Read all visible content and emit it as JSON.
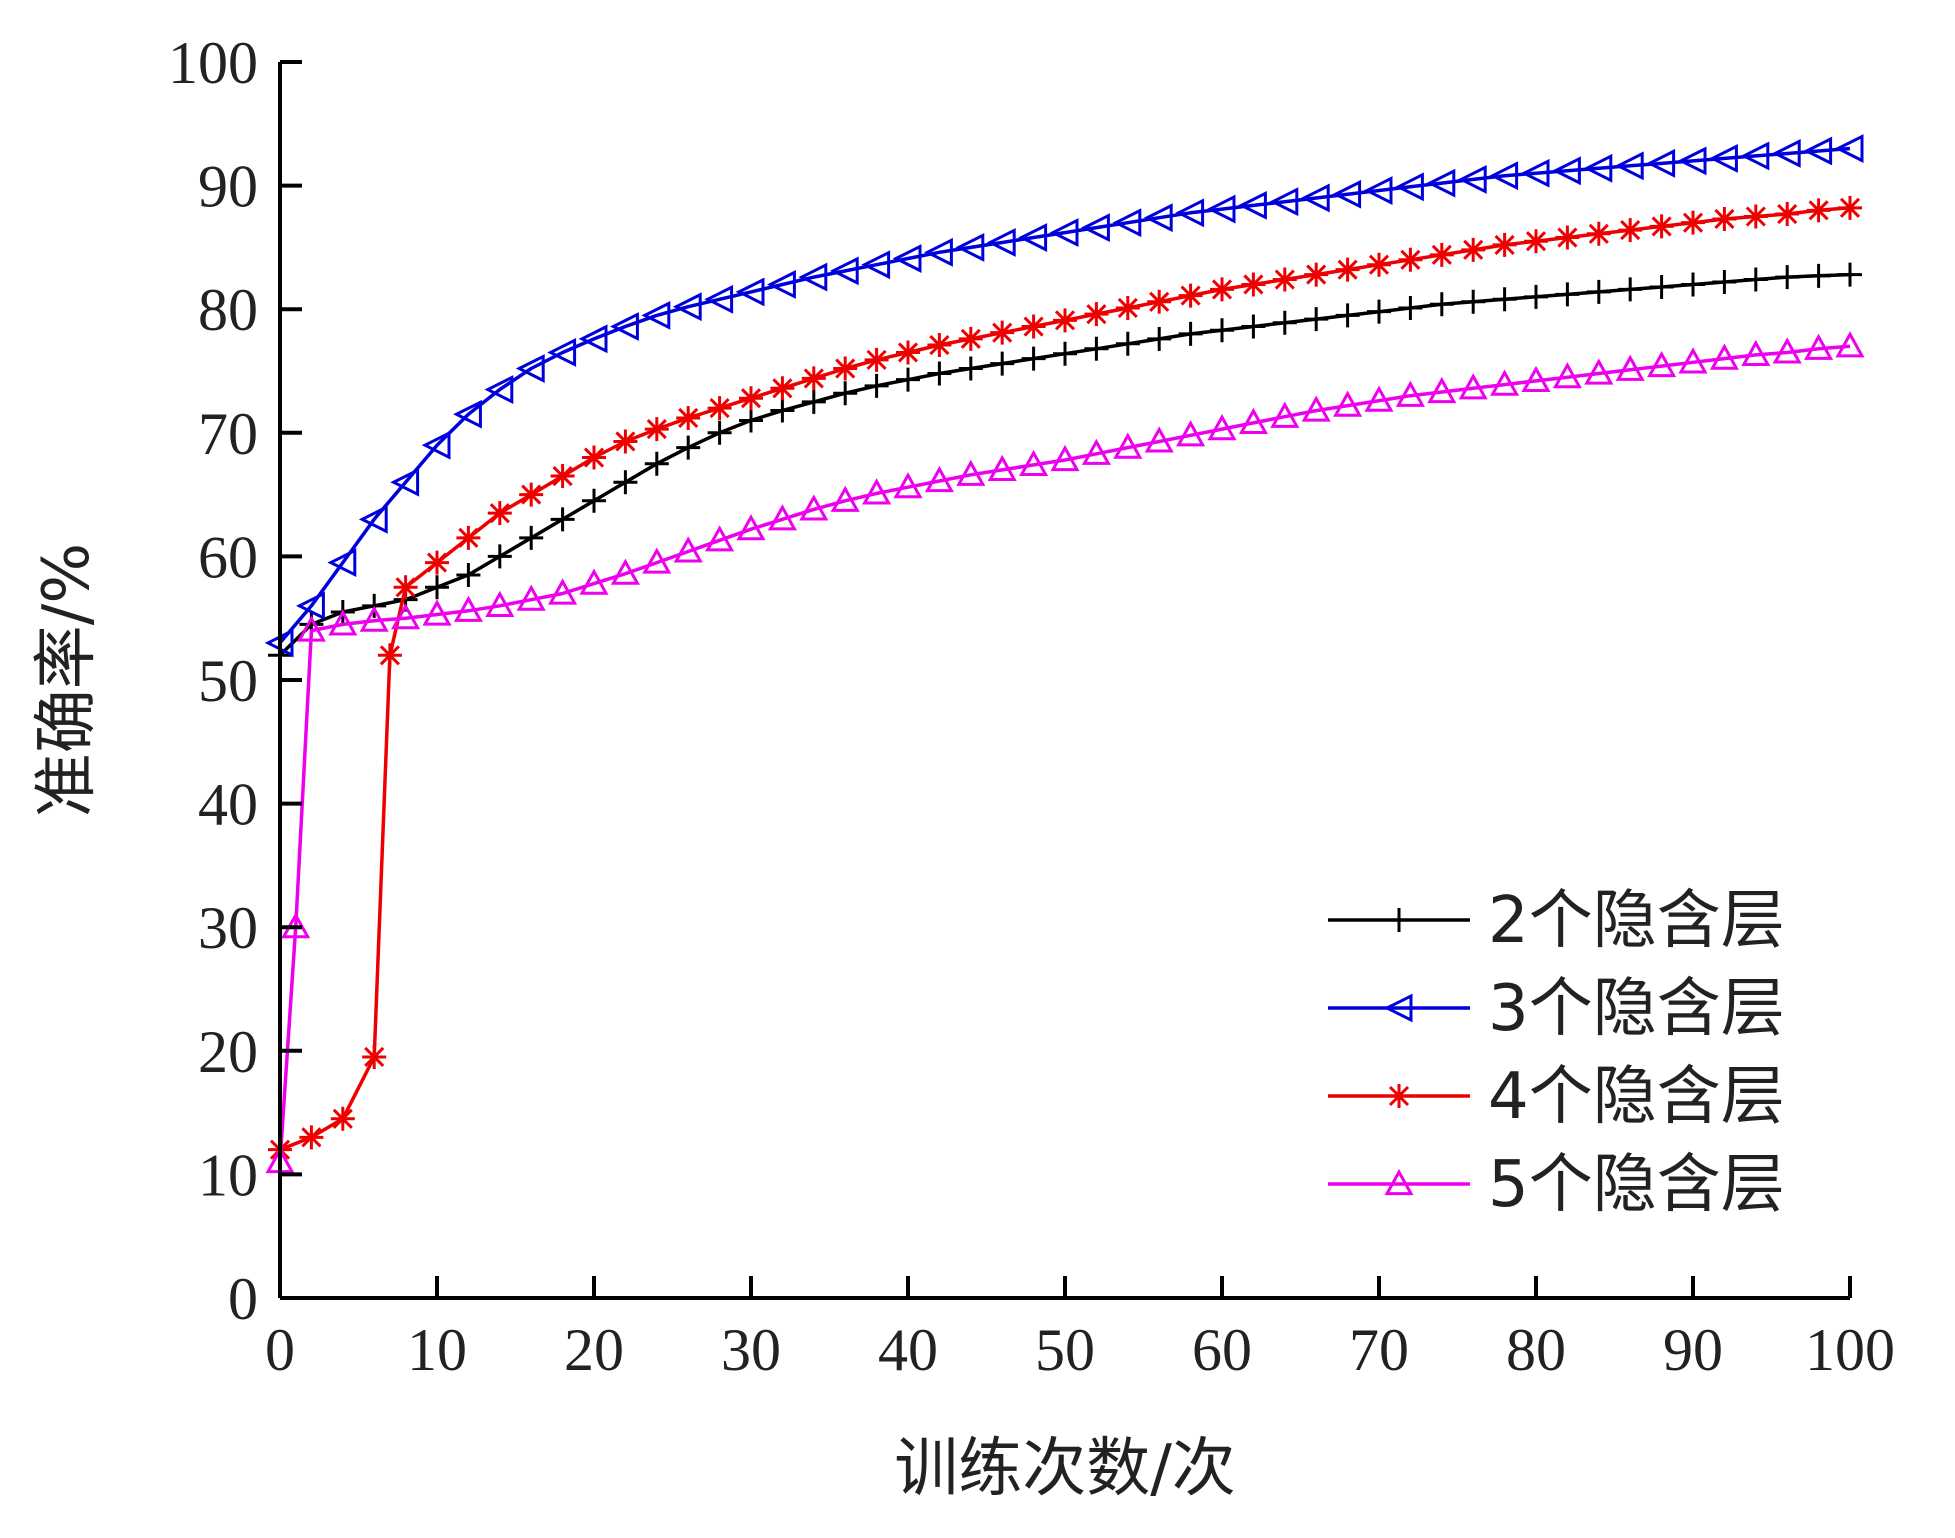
{
  "chart_data": {
    "type": "line",
    "xlabel": "训练次数/次",
    "ylabel": "准确率/%",
    "xlim": [
      0,
      100
    ],
    "ylim": [
      0,
      100
    ],
    "xticks": [
      0,
      10,
      20,
      30,
      40,
      50,
      60,
      70,
      80,
      90,
      100
    ],
    "yticks": [
      0,
      10,
      20,
      30,
      40,
      50,
      60,
      70,
      80,
      90,
      100
    ],
    "xtick_labels": [
      "0",
      "10",
      "20",
      "30",
      "40",
      "50",
      "60",
      "70",
      "80",
      "90",
      "100"
    ],
    "ytick_labels": [
      "0",
      "10",
      "20",
      "30",
      "40",
      "50",
      "60",
      "70",
      "80",
      "90",
      "100"
    ],
    "grid": false,
    "legend_position": "lower-right",
    "series": [
      {
        "name": "2个隐含层",
        "color": "#000000",
        "marker": "plus",
        "x": [
          0,
          2,
          4,
          6,
          8,
          10,
          12,
          14,
          16,
          18,
          20,
          22,
          24,
          26,
          28,
          30,
          32,
          34,
          36,
          38,
          40,
          42,
          44,
          46,
          48,
          50,
          52,
          54,
          56,
          58,
          60,
          62,
          64,
          66,
          68,
          70,
          72,
          74,
          76,
          78,
          80,
          82,
          84,
          86,
          88,
          90,
          92,
          94,
          96,
          98,
          100
        ],
        "y": [
          52,
          54.5,
          55.5,
          56,
          56.5,
          57.5,
          58.5,
          60,
          61.5,
          63,
          64.5,
          66,
          67.5,
          68.8,
          70,
          71,
          71.8,
          72.5,
          73.2,
          73.8,
          74.3,
          74.8,
          75.2,
          75.6,
          76,
          76.4,
          76.8,
          77.2,
          77.6,
          78,
          78.3,
          78.6,
          78.9,
          79.2,
          79.5,
          79.8,
          80.1,
          80.4,
          80.6,
          80.8,
          81,
          81.2,
          81.4,
          81.6,
          81.8,
          82,
          82.2,
          82.4,
          82.6,
          82.7,
          82.8
        ]
      },
      {
        "name": "3个隐含层",
        "color": "#0000dd",
        "marker": "triangle-left",
        "x": [
          0,
          2,
          4,
          6,
          8,
          10,
          12,
          14,
          16,
          18,
          20,
          22,
          24,
          26,
          28,
          30,
          32,
          34,
          36,
          38,
          40,
          42,
          44,
          46,
          48,
          50,
          52,
          54,
          56,
          58,
          60,
          62,
          64,
          66,
          68,
          70,
          72,
          74,
          76,
          78,
          80,
          82,
          84,
          86,
          88,
          90,
          92,
          94,
          96,
          98,
          100
        ],
        "y": [
          53,
          56,
          59.5,
          63,
          66,
          69,
          71.5,
          73.5,
          75.2,
          76.5,
          77.6,
          78.6,
          79.5,
          80.2,
          80.8,
          81.4,
          82,
          82.6,
          83.1,
          83.6,
          84.1,
          84.6,
          85,
          85.4,
          85.8,
          86.2,
          86.6,
          87,
          87.4,
          87.8,
          88.1,
          88.4,
          88.7,
          89,
          89.3,
          89.6,
          89.9,
          90.2,
          90.5,
          90.8,
          91,
          91.2,
          91.4,
          91.6,
          91.8,
          92,
          92.2,
          92.4,
          92.6,
          92.8,
          93
        ]
      },
      {
        "name": "4个隐含层",
        "color": "#ee0000",
        "marker": "asterisk",
        "x": [
          0,
          2,
          4,
          6,
          7,
          8,
          10,
          12,
          14,
          16,
          18,
          20,
          22,
          24,
          26,
          28,
          30,
          32,
          34,
          36,
          38,
          40,
          42,
          44,
          46,
          48,
          50,
          52,
          54,
          56,
          58,
          60,
          62,
          64,
          66,
          68,
          70,
          72,
          74,
          76,
          78,
          80,
          82,
          84,
          86,
          88,
          90,
          92,
          94,
          96,
          98,
          100
        ],
        "y": [
          12,
          13,
          14.5,
          19.5,
          52,
          57.5,
          59.5,
          61.5,
          63.5,
          65,
          66.5,
          68,
          69.3,
          70.3,
          71.2,
          72,
          72.8,
          73.6,
          74.4,
          75.2,
          75.9,
          76.5,
          77.1,
          77.6,
          78.1,
          78.6,
          79.1,
          79.6,
          80.1,
          80.6,
          81.1,
          81.6,
          82,
          82.4,
          82.8,
          83.2,
          83.6,
          84,
          84.4,
          84.8,
          85.2,
          85.5,
          85.8,
          86.1,
          86.4,
          86.7,
          87,
          87.3,
          87.5,
          87.7,
          88,
          88.2
        ]
      },
      {
        "name": "5个隐含层",
        "color": "#ee00ee",
        "marker": "triangle-up",
        "x": [
          0,
          1,
          2,
          4,
          6,
          8,
          10,
          12,
          14,
          16,
          18,
          20,
          22,
          24,
          26,
          28,
          30,
          32,
          34,
          36,
          38,
          40,
          42,
          44,
          46,
          48,
          50,
          52,
          54,
          56,
          58,
          60,
          62,
          64,
          66,
          68,
          70,
          72,
          74,
          76,
          78,
          80,
          82,
          84,
          86,
          88,
          90,
          92,
          94,
          96,
          98,
          100
        ],
        "y": [
          11,
          30,
          54,
          54.5,
          54.8,
          55,
          55.3,
          55.6,
          56,
          56.5,
          57,
          57.8,
          58.6,
          59.5,
          60.4,
          61.3,
          62.2,
          63,
          63.8,
          64.5,
          65.1,
          65.6,
          66.1,
          66.6,
          67,
          67.4,
          67.8,
          68.3,
          68.8,
          69.3,
          69.8,
          70.3,
          70.8,
          71.3,
          71.8,
          72.2,
          72.6,
          73,
          73.3,
          73.6,
          73.9,
          74.2,
          74.5,
          74.8,
          75.1,
          75.4,
          75.7,
          76,
          76.3,
          76.5,
          76.8,
          77
        ]
      }
    ]
  }
}
